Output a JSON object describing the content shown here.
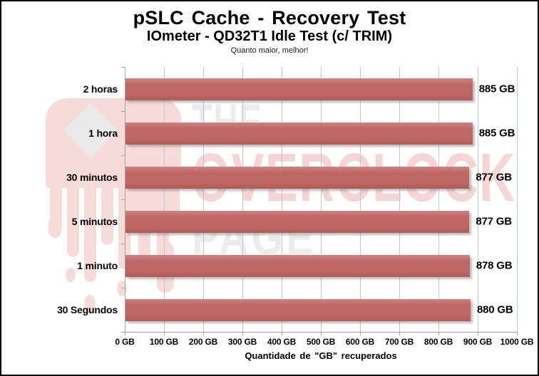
{
  "header": {
    "title": "pSLC Cache - Recovery Test",
    "subtitle": "IOmeter - QD32T1 Idle Test (c/ TRIM)",
    "tagline": "Quanto maior, melhor!"
  },
  "watermark": {
    "line1": "THE",
    "line2": "OVERCLOCK",
    "line3": "PAGE",
    "logo": "melting-chip-icon"
  },
  "chart_data": {
    "type": "bar",
    "orientation": "horizontal",
    "title": "pSLC Cache - Recovery Test",
    "subtitle": "IOmeter - QD32T1 Idle Test (c/ TRIM)",
    "note": "Quanto maior, melhor!",
    "categories": [
      "2 horas",
      "1 hora",
      "30 minutos",
      "5 minutos",
      "1 minuto",
      "30 Segundos"
    ],
    "values": [
      885,
      885,
      877,
      877,
      878,
      880
    ],
    "value_labels": [
      "885 GB",
      "885 GB",
      "877 GB",
      "877 GB",
      "878 GB",
      "880 GB"
    ],
    "unit": "GB",
    "xlabel": "Quantidade de \"GB\" recuperados",
    "xlim": [
      0,
      1000
    ],
    "x_tick_step": 100,
    "x_tick_labels": [
      "0 GB",
      "100 GB",
      "200 GB",
      "300 GB",
      "400 GB",
      "500 GB",
      "600 GB",
      "700 GB",
      "800 GB",
      "900 GB",
      "1000 GB"
    ],
    "grid": "vertical",
    "legend": false,
    "bar_color": "#bf6767",
    "gridline_color": "#b9c6e0",
    "axis_color": "#a3a3a3"
  }
}
